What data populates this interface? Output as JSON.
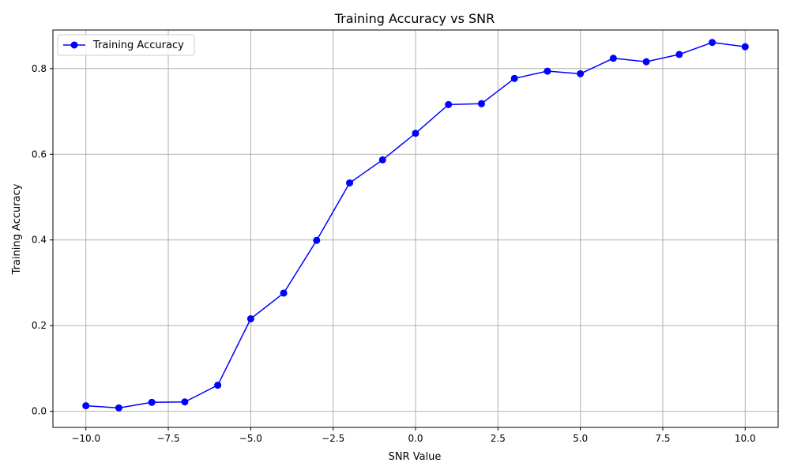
{
  "chart_data": {
    "type": "line",
    "title": "Training Accuracy vs SNR",
    "xlabel": "SNR Value",
    "ylabel": "Training Accuracy",
    "xlim": [
      -11,
      11
    ],
    "ylim": [
      -0.0375,
      0.89
    ],
    "xticks": [
      -10.0,
      -7.5,
      -5.0,
      -2.5,
      0.0,
      2.5,
      5.0,
      7.5,
      10.0
    ],
    "xtick_labels": [
      "−10.0",
      "−7.5",
      "−5.0",
      "−2.5",
      "0.0",
      "2.5",
      "5.0",
      "7.5",
      "10.0"
    ],
    "yticks": [
      0.0,
      0.2,
      0.4,
      0.6,
      0.8
    ],
    "ytick_labels": [
      "0.0",
      "0.2",
      "0.4",
      "0.6",
      "0.8"
    ],
    "grid": true,
    "legend_position": "top-left",
    "series": [
      {
        "name": "Training Accuracy",
        "color": "#0000ff",
        "marker": "circle",
        "x": [
          -10,
          -9,
          -8,
          -7,
          -6,
          -5,
          -4,
          -3,
          -2,
          -1,
          0,
          1,
          2,
          3,
          4,
          5,
          6,
          7,
          8,
          9,
          10
        ],
        "y": [
          0.013,
          0.008,
          0.021,
          0.022,
          0.061,
          0.216,
          0.276,
          0.399,
          0.533,
          0.587,
          0.649,
          0.716,
          0.718,
          0.777,
          0.794,
          0.788,
          0.824,
          0.816,
          0.833,
          0.861,
          0.851
        ]
      }
    ]
  }
}
